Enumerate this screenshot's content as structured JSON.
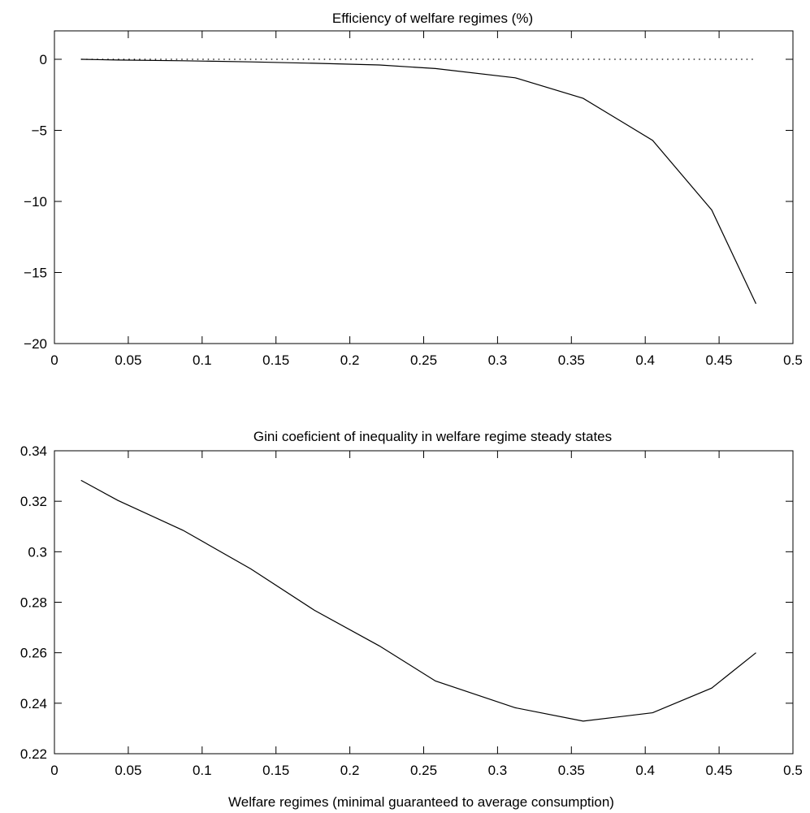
{
  "chart_data": [
    {
      "type": "line",
      "title": "Efficiency of welfare regimes (%)",
      "xlabel": "",
      "ylabel": "",
      "xlim": [
        0,
        0.5
      ],
      "ylim": [
        -20,
        2
      ],
      "xticks": [
        0,
        0.05,
        0.1,
        0.15,
        0.2,
        0.25,
        0.3,
        0.35,
        0.4,
        0.45,
        0.5
      ],
      "xtick_labels": [
        "0",
        "0.05",
        "0.1",
        "0.15",
        "0.2",
        "0.25",
        "0.3",
        "0.35",
        "0.4",
        "0.45",
        "0.5"
      ],
      "yticks": [
        0,
        -5,
        -10,
        -15,
        -20
      ],
      "ytick_labels": [
        "0",
        "−5",
        "−10",
        "−15",
        "−20"
      ],
      "grid": false,
      "series": [
        {
          "style": "solid",
          "x": [
            0.018,
            0.043,
            0.087,
            0.133,
            0.176,
            0.22,
            0.258,
            0.312,
            0.358,
            0.405,
            0.445,
            0.475
          ],
          "y": [
            0,
            -0.05,
            -0.1,
            -0.18,
            -0.28,
            -0.4,
            -0.65,
            -1.3,
            -2.75,
            -5.7,
            -10.6,
            -17.2
          ]
        },
        {
          "style": "dotted",
          "x": [
            0.018,
            0.475
          ],
          "y": [
            0,
            0
          ]
        }
      ]
    },
    {
      "type": "line",
      "title": "Gini coeficient of inequality in welfare regime steady states",
      "xlabel": "Welfare regimes (minimal guaranteed to average consumption)",
      "ylabel": "",
      "xlim": [
        0,
        0.5
      ],
      "ylim": [
        0.22,
        0.34
      ],
      "xticks": [
        0,
        0.05,
        0.1,
        0.15,
        0.2,
        0.25,
        0.3,
        0.35,
        0.4,
        0.45,
        0.5
      ],
      "xtick_labels": [
        "0",
        "0.05",
        "0.1",
        "0.15",
        "0.2",
        "0.25",
        "0.3",
        "0.35",
        "0.4",
        "0.45",
        "0.5"
      ],
      "yticks": [
        0.22,
        0.24,
        0.26,
        0.28,
        0.3,
        0.32,
        0.34
      ],
      "ytick_labels": [
        "0.22",
        "0.24",
        "0.26",
        "0.28",
        "0.3",
        "0.32",
        "0.34"
      ],
      "grid": false,
      "series": [
        {
          "style": "solid",
          "x": [
            0.018,
            0.043,
            0.087,
            0.133,
            0.176,
            0.22,
            0.258,
            0.312,
            0.358,
            0.405,
            0.445,
            0.475
          ],
          "y": [
            0.3283,
            0.3203,
            0.3085,
            0.2932,
            0.2768,
            0.2627,
            0.2488,
            0.2382,
            0.2329,
            0.2362,
            0.246,
            0.26
          ]
        }
      ]
    }
  ]
}
